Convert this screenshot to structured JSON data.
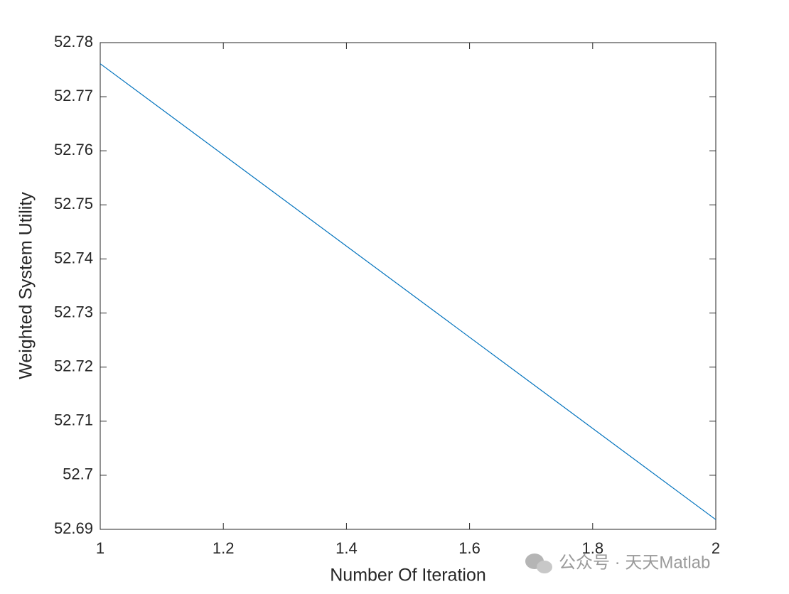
{
  "chart_data": {
    "type": "line",
    "xlabel": "Number Of Iteration",
    "ylabel": "Weighted System Utility",
    "x": [
      1,
      2
    ],
    "series": [
      {
        "color": "#0072bd",
        "values": [
          52.7761,
          52.6918
        ]
      }
    ],
    "xlim": [
      1,
      2
    ],
    "xticks": [
      1,
      1.2,
      1.4,
      1.6,
      1.8,
      2
    ],
    "ylim": [
      52.69,
      52.78
    ],
    "yticks": [
      52.69,
      52.7,
      52.71,
      52.72,
      52.73,
      52.74,
      52.75,
      52.76,
      52.77,
      52.78
    ],
    "grid": false,
    "watermark": "公众号 · 天天Matlab"
  }
}
